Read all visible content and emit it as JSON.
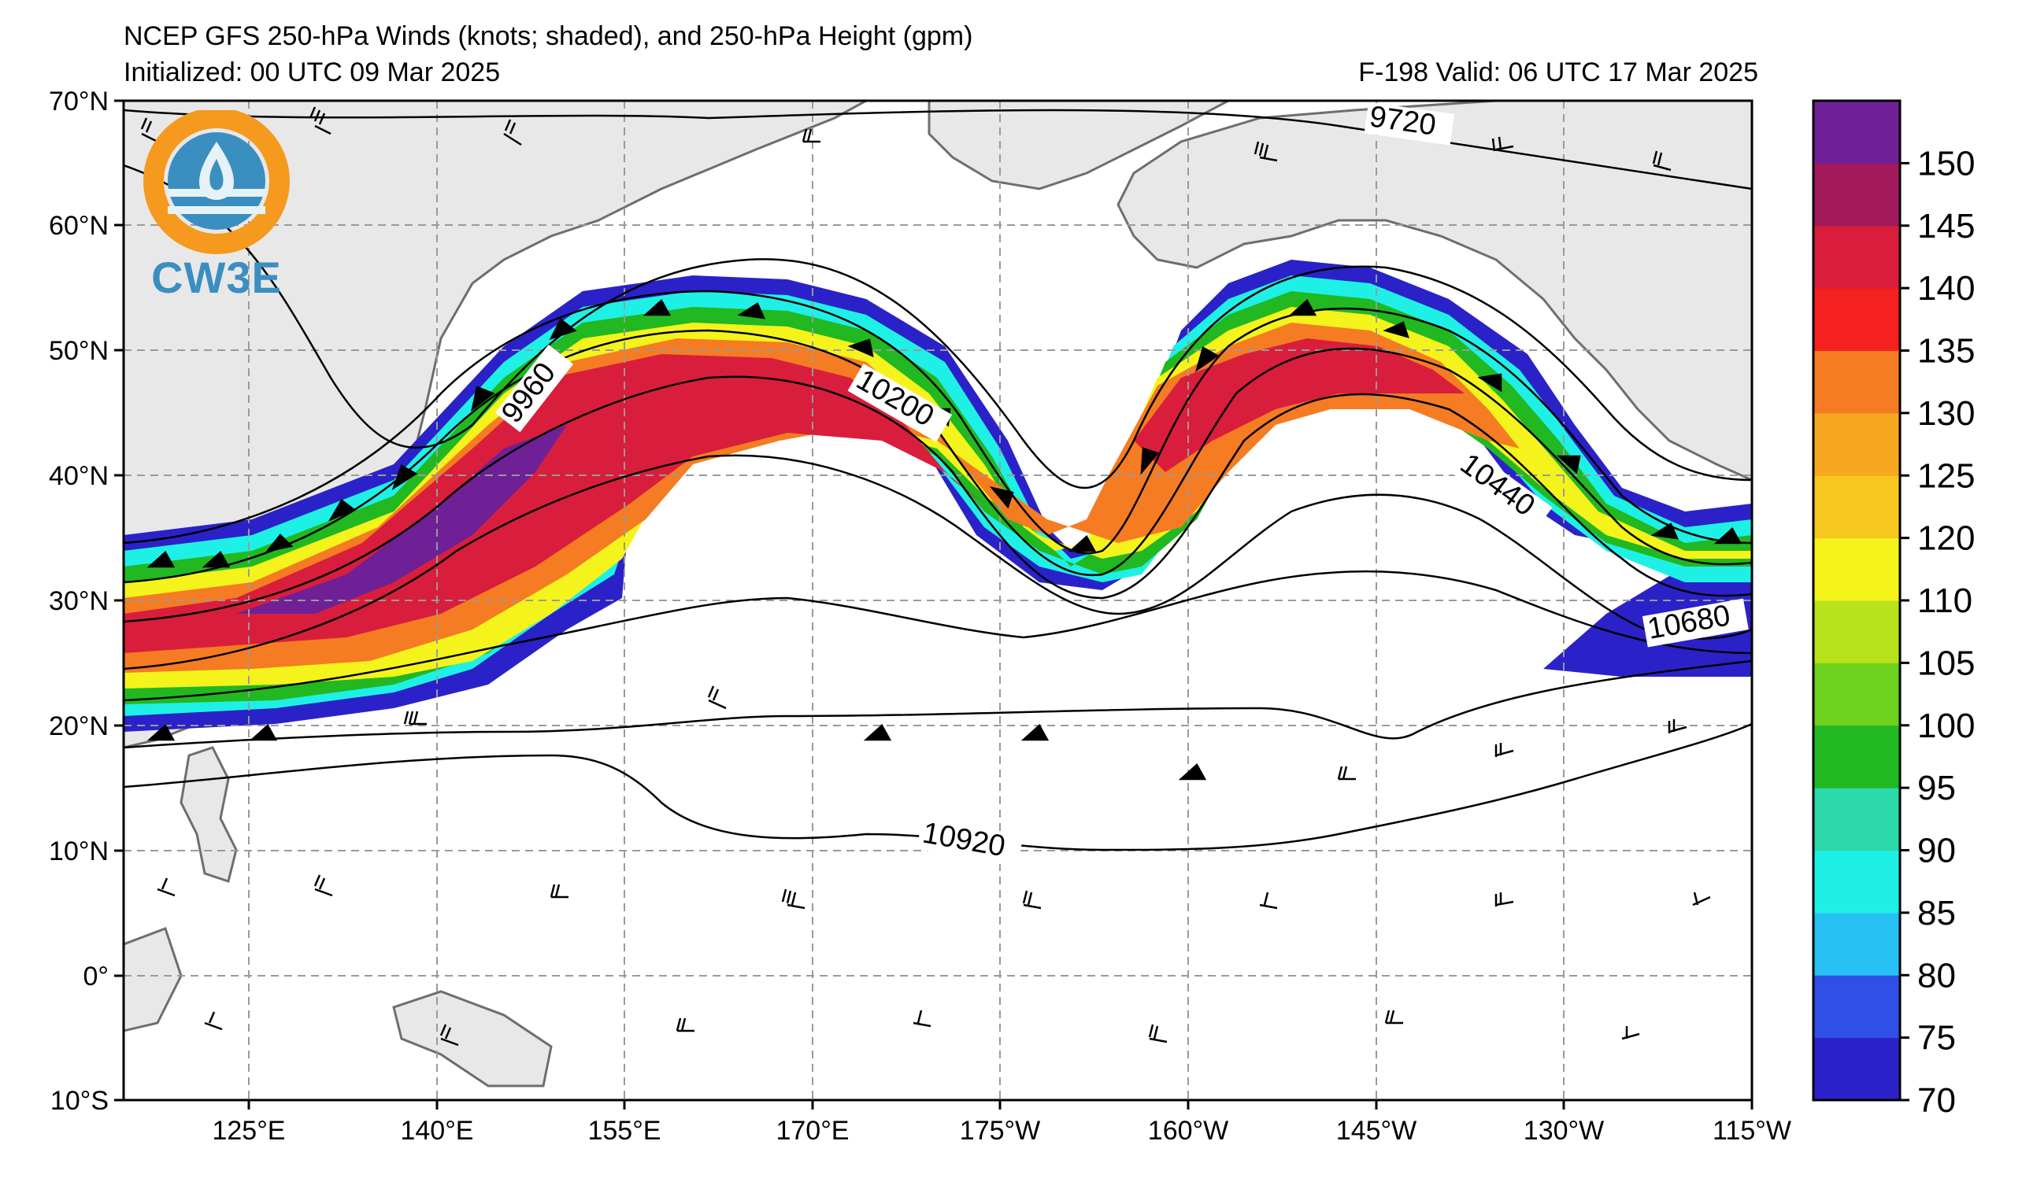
{
  "header": {
    "title": "NCEP GFS 250-hPa Winds (knots; shaded), and 250-hPa Height (gpm)",
    "initialized": "Initialized: 00 UTC 09 Mar 2025",
    "valid": "F-198  Valid: 06 UTC 17 Mar 2025"
  },
  "logo": {
    "text": "CW3E"
  },
  "axes": {
    "lat_labels": [
      "70°N",
      "60°N",
      "50°N",
      "40°N",
      "30°N",
      "20°N",
      "10°N",
      "0°",
      "10°S"
    ],
    "lon_labels": [
      "125°E",
      "140°E",
      "155°E",
      "170°E",
      "175°W",
      "160°W",
      "145°W",
      "130°W",
      "115°W"
    ]
  },
  "contour_labels": [
    "9720",
    "9960",
    "10200",
    "10440",
    "10680",
    "10920"
  ],
  "colorbar": {
    "labels": [
      "150",
      "145",
      "140",
      "135",
      "130",
      "125",
      "120",
      "110",
      "105",
      "100",
      "95",
      "90",
      "85",
      "80",
      "75",
      "70"
    ],
    "colors": [
      "#2a22c8",
      "#2f4fe6",
      "#26c0f2",
      "#1ff0e6",
      "#2cd9a8",
      "#21b821",
      "#6dd11e",
      "#b8e21b",
      "#f4f41c",
      "#f6c81f",
      "#f6a821",
      "#f57c22",
      "#f52020",
      "#d81e3c",
      "#a21a5c",
      "#6f2096"
    ]
  },
  "colors": {
    "land": "#e8e8e8",
    "coast": "#6e6e6e",
    "grid": "#9a9a9a"
  }
}
